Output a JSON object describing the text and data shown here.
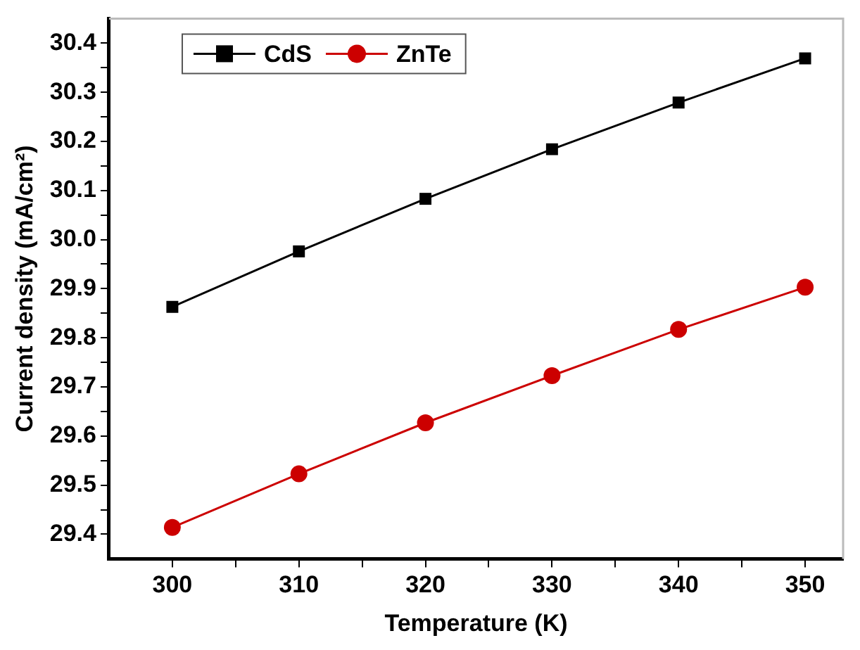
{
  "chart_data": {
    "type": "line",
    "xlabel": "Temperature (K)",
    "ylabel": "Current density (mA/cm²)",
    "x": [
      300,
      310,
      320,
      330,
      340,
      350
    ],
    "series": [
      {
        "name": "CdS",
        "color": "#000000",
        "marker": "square",
        "values": [
          29.863,
          29.976,
          30.083,
          30.184,
          30.279,
          30.369
        ]
      },
      {
        "name": "ZnTe",
        "color": "#cc0000",
        "marker": "circle",
        "values": [
          29.414,
          29.523,
          29.627,
          29.723,
          29.817,
          29.903
        ]
      }
    ],
    "xlim": [
      295,
      353
    ],
    "xticks": [
      300,
      {
        "value": 305,
        "label": null
      },
      310,
      {
        "value": 315,
        "label": null
      },
      320,
      {
        "value": 325,
        "label": null
      },
      330,
      {
        "value": 335,
        "label": null
      },
      340,
      {
        "value": 345,
        "label": null
      },
      350
    ],
    "ylim": [
      29.35,
      30.45
    ],
    "yticks": [
      29.4,
      {
        "value": 29.45,
        "label": null
      },
      29.5,
      {
        "value": 29.55,
        "label": null
      },
      29.6,
      {
        "value": 29.65,
        "label": null
      },
      29.7,
      {
        "value": 29.75,
        "label": null
      },
      29.8,
      {
        "value": 29.85,
        "label": null
      },
      29.9,
      {
        "value": 29.95,
        "label": null
      },
      {
        "value": 30.0,
        "label": "30.0"
      },
      {
        "value": 30.05,
        "label": null
      },
      30.1,
      {
        "value": 30.15,
        "label": null
      },
      30.2,
      {
        "value": 30.25,
        "label": null
      },
      30.3,
      {
        "value": 30.35,
        "label": null
      },
      30.4
    ],
    "grid": false,
    "legend": "top left",
    "line_style": "solid"
  }
}
